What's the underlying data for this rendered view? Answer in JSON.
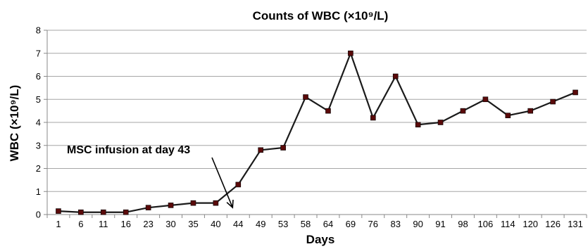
{
  "chart_data": {
    "type": "line",
    "title": "Counts of WBC (×10⁹/L)",
    "xlabel": "Days",
    "ylabel": "WBC (×10⁹/L)",
    "ylim": [
      0,
      8
    ],
    "yticks": [
      0,
      1,
      2,
      3,
      4,
      5,
      6,
      7,
      8
    ],
    "grid": true,
    "categories": [
      "1",
      "6",
      "11",
      "16",
      "23",
      "30",
      "35",
      "40",
      "44",
      "49",
      "53",
      "58",
      "64",
      "69",
      "76",
      "83",
      "90",
      "91",
      "98",
      "106",
      "114",
      "120",
      "126",
      "131"
    ],
    "series": [
      {
        "values": [
          0.15,
          0.1,
          0.1,
          0.1,
          0.3,
          0.4,
          0.5,
          0.5,
          1.3,
          2.8,
          2.9,
          5.1,
          4.5,
          7.0,
          4.2,
          6.0,
          3.9,
          4.0,
          4.5,
          5.0,
          4.3,
          4.5,
          4.9,
          5.3
        ],
        "color": "#1a1a1a",
        "marker_color": "#5a0a0a"
      }
    ],
    "annotations": [
      {
        "text": "MSC infusion at day 43",
        "arrow_to_day": "43"
      }
    ]
  }
}
